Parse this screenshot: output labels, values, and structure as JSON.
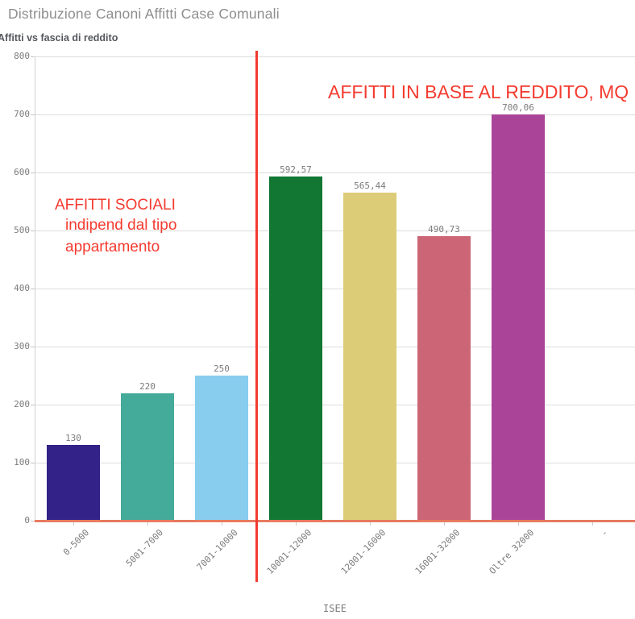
{
  "chart_data": {
    "type": "bar",
    "title": "Distribuzione Canoni Affitti Case Comunali",
    "subtitle": "Affitti vs fascia di reddito",
    "xlabel": "ISEE",
    "ylabel": "",
    "ylim": [
      0,
      800
    ],
    "yticks": [
      0,
      100,
      200,
      300,
      400,
      500,
      600,
      700,
      800
    ],
    "ytick_labels": [
      "0",
      "100",
      "200",
      "300",
      "400",
      "500",
      "600",
      "700",
      "800"
    ],
    "grid": true,
    "legend": false,
    "categories": [
      "0-5000",
      "5001-7000",
      "7001-10000",
      "10001-12000",
      "12001-16000",
      "16001-32000",
      "Oltre 32000"
    ],
    "values": [
      130,
      220,
      250,
      592.57,
      565.44,
      490.73,
      700.06
    ],
    "value_labels": [
      "130",
      "220",
      "250",
      "592,57",
      "565,44",
      "490,73",
      "700,06"
    ],
    "bar_colors": [
      "#332288",
      "#44aa99",
      "#88ccee",
      "#117733",
      "#ddcc77",
      "#cc6677",
      "#aa4499"
    ],
    "extra_category_label": "-",
    "annotations": [
      {
        "id": "left-line-1",
        "text": "AFFITTI SOCIALI"
      },
      {
        "id": "left-line-2",
        "text": "indipend dal tipo"
      },
      {
        "id": "left-line-3",
        "text": "appartamento"
      },
      {
        "id": "right-line-1",
        "text": "AFFITTI IN BASE AL REDDITO, MQ"
      }
    ],
    "colors": {
      "annotation_text": "#f43b30",
      "separator_line": "#f23a30",
      "x_axis_line": "#e87a5f",
      "gridline": "#dcdcdc",
      "tick_text": "#7b7b7e",
      "title_text": "#8e8e8e",
      "subtitle_text": "#54575d"
    }
  }
}
